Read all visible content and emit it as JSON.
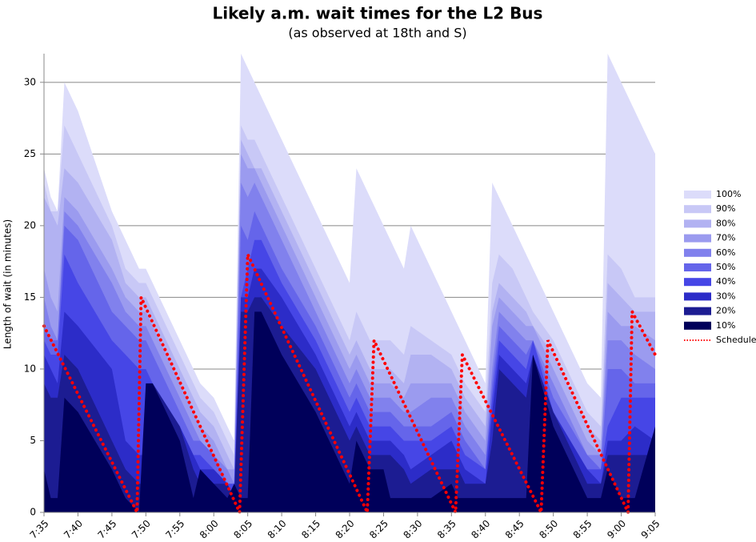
{
  "chart_data": {
    "type": "area",
    "title": "Likely a.m. wait times for the L2 Bus",
    "subtitle": "(as observed at 18th and S)",
    "y_label": "Length of wait (in minutes)",
    "x": [
      35,
      36,
      37,
      38,
      40,
      45,
      47,
      49,
      50,
      51,
      55,
      57,
      58,
      60,
      62,
      63,
      64,
      65,
      66,
      67,
      70,
      75,
      80,
      81,
      83,
      85,
      86,
      88,
      89,
      92,
      95,
      96,
      97,
      100,
      101,
      102,
      104,
      106,
      107,
      110,
      115,
      117,
      118,
      120,
      122,
      125
    ],
    "xlim": [
      35,
      125
    ],
    "xticks": [
      {
        "value": 35,
        "label": "7:35"
      },
      {
        "value": 40,
        "label": "7:40"
      },
      {
        "value": 45,
        "label": "7:45"
      },
      {
        "value": 50,
        "label": "7:50"
      },
      {
        "value": 55,
        "label": "7:55"
      },
      {
        "value": 60,
        "label": "8:00"
      },
      {
        "value": 65,
        "label": "8:05"
      },
      {
        "value": 70,
        "label": "8:10"
      },
      {
        "value": 75,
        "label": "8:15"
      },
      {
        "value": 80,
        "label": "8:20"
      },
      {
        "value": 85,
        "label": "8:25"
      },
      {
        "value": 90,
        "label": "8:30"
      },
      {
        "value": 95,
        "label": "8:35"
      },
      {
        "value": 100,
        "label": "8:40"
      },
      {
        "value": 105,
        "label": "8:45"
      },
      {
        "value": 110,
        "label": "8:50"
      },
      {
        "value": 115,
        "label": "8:55"
      },
      {
        "value": 120,
        "label": "9:00"
      },
      {
        "value": 125,
        "label": "9:05"
      }
    ],
    "ylim": [
      0,
      32
    ],
    "yticks": [
      0,
      5,
      10,
      15,
      20,
      25,
      30
    ],
    "grid": true,
    "legend": "right",
    "series": [
      {
        "name": "100%",
        "color": "#dcdcfa",
        "values": [
          24,
          22,
          21,
          30,
          28,
          21,
          19,
          17,
          17,
          16,
          12,
          10,
          9,
          8,
          6,
          5,
          32,
          31,
          30,
          29,
          26,
          21,
          16,
          24,
          22,
          20,
          19,
          17,
          20,
          17,
          14,
          13,
          12,
          9,
          23,
          22,
          20,
          18,
          17,
          14,
          9,
          8,
          32,
          30,
          28,
          25
        ]
      },
      {
        "name": "90%",
        "color": "#c8c8f6",
        "values": [
          23,
          21,
          21,
          27,
          25,
          20,
          17,
          16,
          16,
          15,
          11,
          9,
          8,
          7,
          5,
          4,
          27,
          26,
          26,
          25,
          22,
          17,
          12,
          14,
          12,
          12,
          12,
          11,
          13,
          12,
          11,
          10,
          9,
          7,
          16,
          18,
          17,
          15,
          14,
          12,
          7,
          6,
          18,
          17,
          15,
          15
        ]
      },
      {
        "name": "80%",
        "color": "#b2b2f2",
        "values": [
          22,
          21,
          20,
          24,
          23,
          19,
          16,
          15,
          15,
          14,
          10,
          8,
          7,
          6,
          4,
          3,
          26,
          25,
          24,
          24,
          21,
          16,
          11,
          12,
          10,
          10,
          10,
          9,
          11,
          11,
          10,
          9,
          8,
          6,
          14,
          16,
          15,
          14,
          13,
          11,
          6,
          5,
          16,
          15,
          14,
          14
        ]
      },
      {
        "name": "70%",
        "color": "#9b9bef",
        "values": [
          17,
          15,
          14,
          22,
          21,
          17,
          15,
          14,
          14,
          13,
          9,
          7,
          6,
          5,
          3,
          3,
          25,
          24,
          24,
          23,
          20,
          15,
          10,
          11,
          9,
          9,
          9,
          8,
          9,
          9,
          9,
          8,
          7,
          5,
          13,
          15,
          14,
          13,
          13,
          10,
          5,
          4,
          14,
          13,
          13,
          12
        ]
      },
      {
        "name": "60%",
        "color": "#8181ed",
        "values": [
          15,
          13,
          12,
          21,
          20,
          16,
          14,
          13,
          13,
          12,
          8,
          6,
          5,
          4,
          3,
          2,
          23,
          22,
          23,
          22,
          19,
          14,
          9,
          10,
          8,
          8,
          8,
          7,
          7,
          8,
          8,
          7,
          6,
          4,
          10,
          14,
          13,
          12,
          12,
          9,
          4,
          4,
          12,
          12,
          11,
          10
        ]
      },
      {
        "name": "50%",
        "color": "#6565ea",
        "values": [
          13,
          12,
          12,
          20,
          19,
          14,
          13,
          12,
          12,
          11,
          7,
          5,
          5,
          4,
          2,
          2,
          20,
          19,
          21,
          20,
          17,
          13,
          8,
          9,
          7,
          7,
          7,
          6,
          6,
          6,
          7,
          6,
          5,
          3,
          9,
          13,
          12,
          11,
          12,
          8,
          4,
          3,
          10,
          10,
          9,
          9
        ]
      },
      {
        "name": "40%",
        "color": "#4646e6",
        "values": [
          12,
          11,
          11,
          18,
          16,
          12,
          11,
          10,
          10,
          9,
          6,
          4,
          4,
          3,
          2,
          2,
          15,
          17,
          19,
          19,
          16,
          12,
          7,
          8,
          6,
          6,
          6,
          5,
          5,
          5,
          6,
          5,
          4,
          3,
          8,
          12,
          11,
          10,
          12,
          7,
          3,
          3,
          6,
          8,
          8,
          8
        ]
      },
      {
        "name": "30%",
        "color": "#2c2cc8",
        "values": [
          11,
          10,
          9,
          14,
          13,
          10,
          5,
          4,
          4,
          9,
          6,
          4,
          3,
          3,
          2,
          1,
          15,
          15,
          17,
          17,
          15,
          11,
          6,
          7,
          5,
          5,
          5,
          4,
          3,
          4,
          5,
          4,
          3,
          2,
          7,
          11,
          10,
          9,
          11,
          7,
          3,
          2,
          5,
          5,
          6,
          5
        ]
      },
      {
        "name": "20%",
        "color": "#1c1c92",
        "values": [
          9,
          8,
          8,
          11,
          10,
          5,
          3,
          2,
          2,
          9,
          6,
          3,
          2,
          2,
          2,
          1,
          14,
          14,
          15,
          15,
          13,
          10,
          5,
          6,
          4,
          4,
          4,
          3,
          2,
          3,
          3,
          3,
          2,
          2,
          5,
          10,
          9,
          8,
          11,
          7,
          2,
          2,
          4,
          4,
          4,
          4
        ]
      },
      {
        "name": "10%",
        "color": "#00005a",
        "values": [
          3,
          1,
          1,
          8,
          7,
          3,
          1,
          0,
          9,
          9,
          5,
          1,
          3,
          2,
          1,
          2,
          1,
          1,
          14,
          14,
          11,
          7,
          2,
          5,
          3,
          3,
          1,
          1,
          1,
          1,
          2,
          1,
          1,
          1,
          1,
          1,
          1,
          1,
          11,
          6,
          1,
          1,
          3,
          1,
          1,
          6
        ]
      },
      {
        "name": "Schedule",
        "color": "#ff0000",
        "x": [
          35,
          48.7,
          49.3,
          63.8,
          65,
          82.6,
          83.6,
          95.6,
          96.6,
          108.2,
          109.2,
          121,
          121.6,
          125
        ],
        "values": [
          13,
          0,
          15,
          0,
          18,
          0,
          12,
          0,
          11,
          0,
          12,
          0,
          14,
          11
        ]
      }
    ]
  }
}
